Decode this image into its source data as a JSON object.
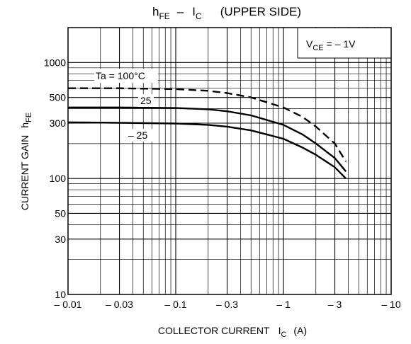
{
  "chart_data": {
    "type": "line",
    "title": {
      "main": "h",
      "main_sub": "FE",
      "dash": "–",
      "var": "I",
      "var_sub": "C",
      "suffix": "(UPPER SIDE)"
    },
    "ylabel": {
      "main": "CURRENT GAIN",
      "var": "h",
      "var_sub": "FE"
    },
    "xlabel": {
      "main": "COLLECTOR CURRENT",
      "var": "I",
      "var_sub": "C",
      "unit": "(A)"
    },
    "condition": {
      "var": "V",
      "var_sub": "CE",
      "value": "= – 1V"
    },
    "x_scale": "log",
    "y_scale": "log",
    "xlim": [
      0.01,
      10
    ],
    "ylim": [
      10,
      2000
    ],
    "x_tick_values": [
      0.01,
      0.03,
      0.1,
      0.3,
      1,
      3,
      10
    ],
    "x_tick_labels": [
      "– 0.01",
      "– 0.03",
      "– 0.1",
      "– 0.3",
      "– 1",
      "– 3",
      "– 10"
    ],
    "y_tick_values": [
      10,
      30,
      50,
      100,
      300,
      500,
      1000
    ],
    "y_tick_labels": [
      "10",
      "30",
      "50",
      "100",
      "300",
      "500",
      "1000"
    ],
    "grid": true,
    "series": [
      {
        "name": "Ta = 100°C",
        "style": "dashed",
        "x": [
          0.01,
          0.03,
          0.1,
          0.2,
          0.3,
          0.5,
          1.0,
          1.5,
          2.0,
          3.0,
          3.8
        ],
        "y": [
          600,
          600,
          590,
          570,
          545,
          500,
          410,
          340,
          280,
          200,
          140
        ]
      },
      {
        "name": "25",
        "style": "solid",
        "x": [
          0.01,
          0.03,
          0.1,
          0.2,
          0.3,
          0.5,
          1.0,
          1.5,
          2.0,
          3.0,
          3.8
        ],
        "y": [
          410,
          410,
          405,
          395,
          380,
          350,
          290,
          240,
          200,
          150,
          115
        ]
      },
      {
        "name": "– 25",
        "style": "solid",
        "x": [
          0.01,
          0.03,
          0.1,
          0.2,
          0.3,
          0.5,
          1.0,
          1.5,
          2.0,
          3.0,
          3.8
        ],
        "y": [
          305,
          302,
          298,
          290,
          280,
          260,
          220,
          185,
          160,
          125,
          100
        ]
      }
    ]
  }
}
